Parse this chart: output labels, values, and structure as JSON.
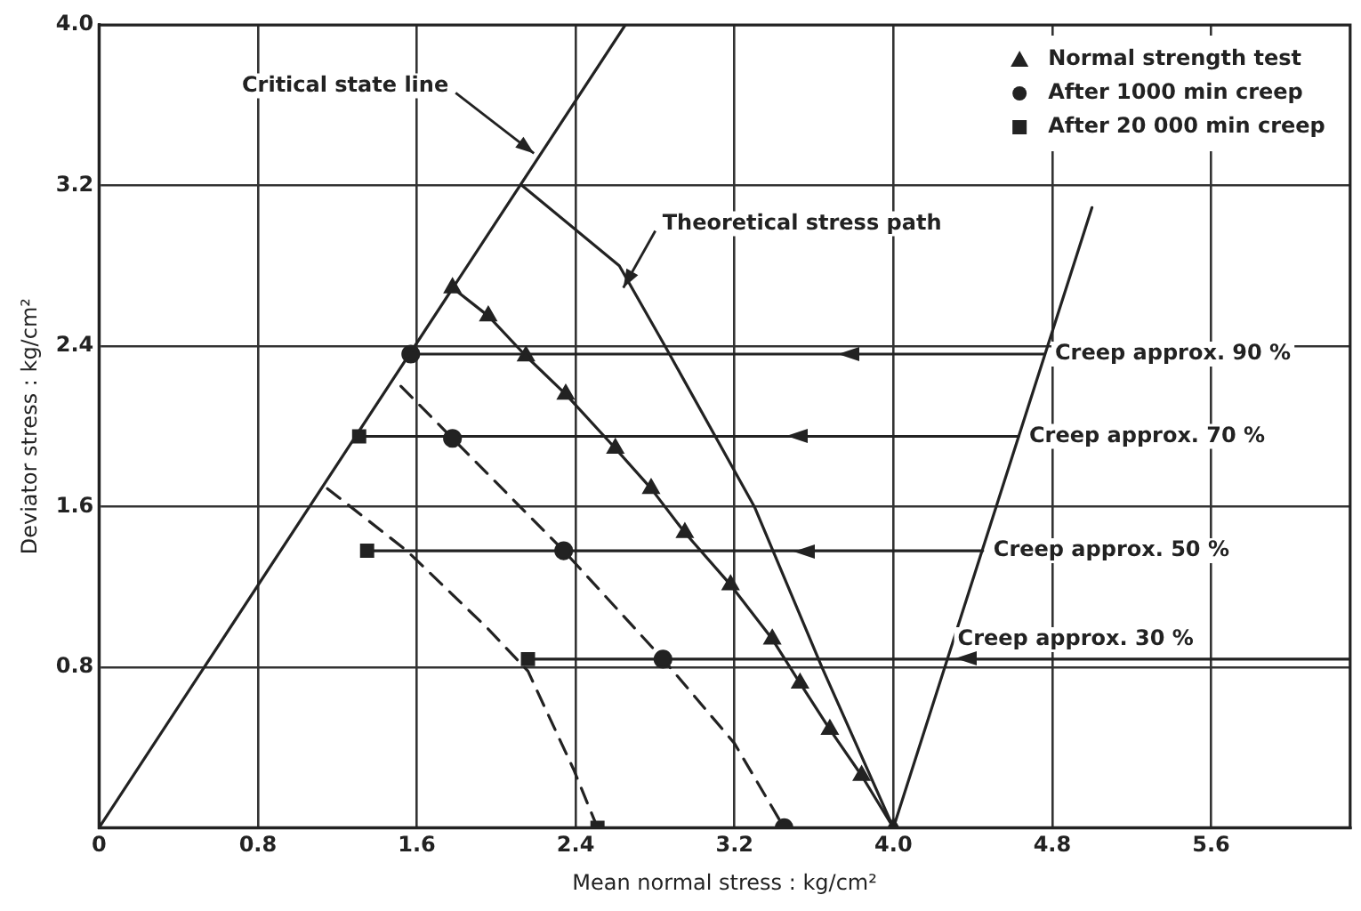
{
  "chart_data": {
    "type": "line",
    "xlabel": "Mean normal stress : kg/cm²",
    "ylabel": "Deviator stress : kg/cm²",
    "xlim": [
      0,
      6.3
    ],
    "ylim": [
      0,
      4.0
    ],
    "xticks": [
      0,
      0.8,
      1.6,
      2.4,
      3.2,
      {
        "value": 4.0,
        "label": "4.0"
      },
      4.8,
      5.6
    ],
    "yticks": [
      {
        "value": 0,
        "label": null
      },
      0.8,
      1.6,
      2.4,
      3.2,
      {
        "value": 4.0,
        "label": "4.0"
      }
    ],
    "grid": true,
    "legend": "top right",
    "marker": "none",
    "line_style": "solid",
    "series": [
      {
        "type": "line",
        "color": "#222222",
        "x": [
          0,
          2.65
        ],
        "values": [
          0,
          4.0
        ]
      },
      {
        "type": "line",
        "color": "#222222",
        "x": [
          2.13,
          2.62,
          2.85,
          3.3,
          3.64,
          4.0
        ],
        "values": [
          3.2,
          2.8,
          2.4,
          1.6,
          0.8,
          0
        ]
      },
      {
        "type": "line",
        "color": "#222222",
        "x": [
          4.0,
          5.0
        ],
        "values": [
          0,
          3.09
        ]
      },
      {
        "name": "Normal strength test",
        "type": "line",
        "marker": "triangle",
        "color": "#222222",
        "x": [
          1.78,
          1.96,
          2.15,
          2.35,
          2.6,
          2.78,
          2.95,
          3.18,
          3.39,
          3.53,
          3.68,
          3.84,
          4.0
        ],
        "values": [
          2.69,
          2.55,
          2.35,
          2.16,
          1.89,
          1.69,
          1.47,
          1.21,
          0.94,
          0.72,
          0.49,
          0.26,
          0
        ]
      },
      {
        "name": "After 1000 min creep",
        "type": "scatter",
        "marker": "circle",
        "color": "#222222",
        "x": [
          1.57,
          1.78,
          2.34,
          2.84,
          3.45
        ],
        "values": [
          2.36,
          1.94,
          1.38,
          0.84,
          0
        ]
      },
      {
        "type": "line",
        "line_style": "dashed",
        "color": "#222222",
        "x": [
          1.52,
          1.78,
          2.34,
          2.84,
          3.2,
          3.45
        ],
        "values": [
          2.2,
          1.94,
          1.38,
          0.84,
          0.42,
          0
        ]
      },
      {
        "name": "After 20 000 min creep",
        "type": "scatter",
        "marker": "square",
        "color": "#222222",
        "x": [
          1.31,
          1.35,
          2.16,
          2.51
        ],
        "values": [
          1.95,
          1.38,
          0.84,
          0
        ]
      },
      {
        "type": "line",
        "line_style": "dashed",
        "color": "#222222",
        "x": [
          1.15,
          1.55,
          1.96,
          2.16,
          2.39,
          2.51
        ],
        "values": [
          1.69,
          1.38,
          0.99,
          0.78,
          0.29,
          0
        ]
      },
      {
        "type": "line",
        "color": "#222222",
        "x": [
          1.57,
          4.76
        ],
        "values": [
          2.36,
          2.36
        ]
      },
      {
        "type": "line",
        "color": "#222222",
        "x": [
          1.31,
          4.63
        ],
        "values": [
          1.95,
          1.95
        ]
      },
      {
        "type": "line",
        "color": "#222222",
        "x": [
          1.35,
          4.45
        ],
        "values": [
          1.38,
          1.38
        ]
      },
      {
        "type": "line",
        "color": "#222222",
        "x": [
          2.16,
          6.3
        ],
        "values": [
          0.84,
          0.84
        ]
      }
    ],
    "annotations": [
      {
        "text": "Critical state line",
        "x": 2.19,
        "y": 3.36
      },
      {
        "text": "Theoretical stress path",
        "x": 2.64,
        "y": 2.69
      },
      {
        "text": "Creep approx. 90 %",
        "x": 4.76,
        "y": 2.36
      },
      {
        "text": "Creep approx. 70 %",
        "x": 4.63,
        "y": 1.95
      },
      {
        "text": "Creep approx. 50 %",
        "x": 4.45,
        "y": 1.38
      },
      {
        "text": "Creep approx. 30 %",
        "x": 4.27,
        "y": 0.84
      }
    ]
  }
}
